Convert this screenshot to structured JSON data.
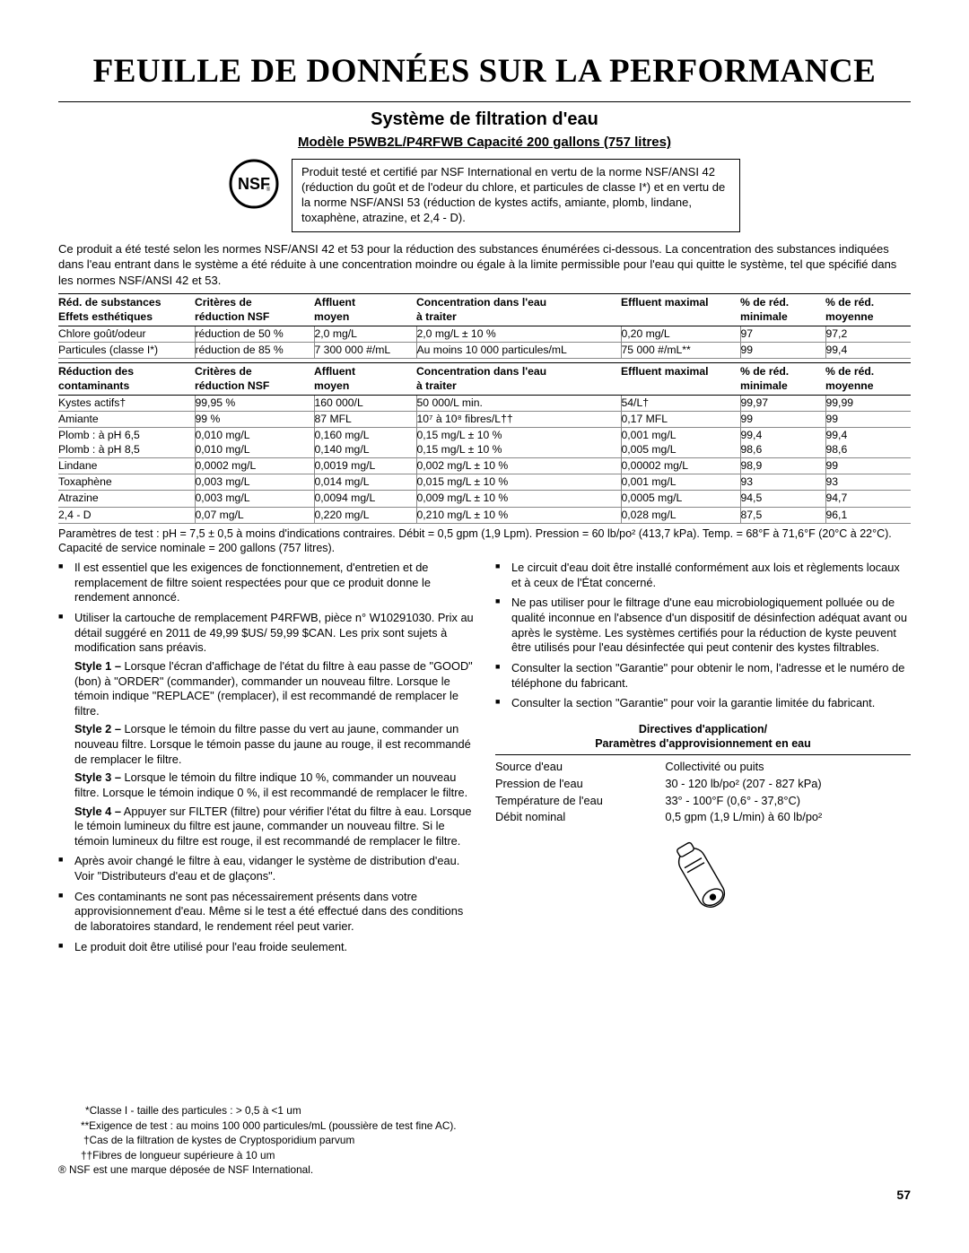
{
  "title": "FEUILLE DE DONNÉES SUR LA PERFORMANCE",
  "subtitle": "Système de filtration d'eau",
  "modelline": "Modèle P5WB2L/P4RFWB Capacité 200 gallons (757 litres)",
  "certbox": "Produit testé et certifié par NSF International en vertu de la norme NSF/ANSI 42 (réduction du goût et de l'odeur du chlore, et particules de classe I*) et en vertu de la norme NSF/ANSI 53 (réduction de kystes actifs, amiante, plomb, lindane, toxaphène, atrazine, et 2,4 - D).",
  "intro": "Ce produit a été testé selon les normes NSF/ANSI 42 et 53 pour la réduction des substances énumérées ci-dessous. La concentration des substances indiquées dans l'eau entrant dans le système a été réduite à une concentration moindre ou égale à la limite permissible pour l'eau qui quitte le système, tel que spécifié dans les normes NSF/ANSI 42 et 53.",
  "table1": {
    "headers": [
      "Réd. de substances\nEffets esthétiques",
      "Critères de\nréduction NSF",
      "Affluent\nmoyen",
      "Concentration dans l'eau\nà traiter",
      "Effluent maximal",
      "% de réd.\nminimale",
      "% de réd.\nmoyenne"
    ],
    "rows": [
      [
        "Chlore goût/odeur",
        "réduction de 50 %",
        "2,0 mg/L",
        "2,0 mg/L ± 10 %",
        "0,20 mg/L",
        "97",
        "97,2"
      ],
      [
        "Particules (classe I*)",
        "réduction de 85 %",
        "7 300 000 #/mL",
        "Au moins 10 000 particules/mL",
        "75 000 #/mL**",
        "99",
        "99,4"
      ]
    ]
  },
  "table2": {
    "headers": [
      "Réduction des\ncontaminants",
      "Critères de\nréduction NSF",
      "Affluent\nmoyen",
      "Concentration dans l'eau\nà traiter",
      "Effluent maximal",
      "% de réd.\nminimale",
      "% de réd.\nmoyenne"
    ],
    "rows": [
      [
        "Kystes actifs†",
        "99,95 %",
        "160 000/L",
        "50 000/L min.",
        "54/L†",
        "99,97",
        "99,99"
      ],
      [
        "Amiante",
        "99 %",
        "87 MFL",
        "10⁷ à 10⁸ fibres/L††",
        "0,17 MFL",
        "99",
        "99"
      ],
      [
        "Plomb : à pH 6,5\nPlomb : à pH 8,5",
        "0,010 mg/L\n0,010 mg/L",
        "0,160 mg/L\n0,140 mg/L",
        "0,15 mg/L ± 10 %\n0,15 mg/L ± 10 %",
        "0,001 mg/L\n0,005 mg/L",
        "99,4\n98,6",
        "99,4\n98,6"
      ],
      [
        "Lindane",
        "0,0002 mg/L",
        "0,0019 mg/L",
        "0,002 mg/L ± 10 %",
        "0,00002 mg/L",
        "98,9",
        "99"
      ],
      [
        "Toxaphène",
        "0,003 mg/L",
        "0,014 mg/L",
        "0,015 mg/L ± 10 %",
        "0,001 mg/L",
        "93",
        "93"
      ],
      [
        "Atrazine",
        "0,003 mg/L",
        "0,0094 mg/L",
        "0,009 mg/L ± 10 %",
        "0,0005 mg/L",
        "94,5",
        "94,7"
      ],
      [
        "2,4 - D",
        "0,07 mg/L",
        "0,220 mg/L",
        "0,210 mg/L ± 10 %",
        "0,028 mg/L",
        "87,5",
        "96,1"
      ]
    ]
  },
  "testparams": "Paramètres de test : pH = 7,5 ± 0,5 à moins d'indications contraires. Débit = 0,5 gpm (1,9 Lpm). Pression = 60 lb/po² (413,7 kPa). Temp. = 68°F à 71,6°F (20°C à 22°C). Capacité de service nominale = 200 gallons (757 litres).",
  "leftbullets": {
    "b1": "Il est essentiel que les exigences de fonctionnement, d'entretien et de remplacement de filtre soient respectées pour que ce produit donne le rendement annoncé.",
    "b2_intro": "Utiliser la cartouche de remplacement P4RFWB, pièce n° W10291030. Prix au détail suggéré en 2011 de 49,99 $US/ 59,99 $CAN. Les prix sont sujets à modification sans préavis.",
    "style1_label": "Style 1 –",
    "style1": " Lorsque l'écran d'affichage de l'état du filtre à eau passe de \"GOOD\" (bon) à \"ORDER\" (commander), commander un nouveau filtre. Lorsque le témoin indique \"REPLACE\" (remplacer), il est recommandé de remplacer le filtre.",
    "style2_label": "Style 2 –",
    "style2": " Lorsque le témoin du filtre passe du vert au jaune, commander un nouveau filtre. Lorsque le témoin passe du jaune au rouge, il est recommandé de remplacer le filtre.",
    "style3_label": "Style 3 –",
    "style3": " Lorsque le témoin du filtre indique 10 %, commander un nouveau filtre. Lorsque le témoin indique 0 %, il est recommandé de remplacer le filtre.",
    "style4_label": "Style 4 –",
    "style4": " Appuyer sur FILTER (filtre) pour vérifier l'état du filtre à eau. Lorsque le témoin lumineux du filtre est jaune, commander un nouveau filtre. Si le témoin lumineux du filtre est rouge, il est recommandé de remplacer le filtre.",
    "b3": "Après avoir changé le filtre à eau, vidanger le système de distribution d'eau. Voir \"Distributeurs d'eau et de glaçons\".",
    "b4": "Ces contaminants ne sont pas nécessairement présents dans votre approvisionnement d'eau. Même si le test a été effectué dans des conditions de laboratoires standard, le rendement réel peut varier.",
    "b5": "Le produit doit être utilisé pour l'eau froide seulement."
  },
  "rightbullets": {
    "r1": "Le circuit d'eau doit être installé conformément aux lois et règlements locaux et à ceux de l'État concerné.",
    "r2": "Ne pas utiliser pour le filtrage d'une eau microbiologiquement polluée ou de qualité inconnue en l'absence d'un dispositif de désinfection adéquat avant ou après le système. Les systèmes certifiés pour la réduction de kyste peuvent être utilisés pour l'eau désinfectée qui peut contenir des kystes filtrables.",
    "r3": "Consulter la section \"Garantie\" pour obtenir le nom, l'adresse et le numéro de téléphone du fabricant.",
    "r4": "Consulter la section \"Garantie\" pour voir la garantie limitée du fabricant."
  },
  "guidelines": {
    "heading": "Directives d'application/\nParamètres d'approvisionnement en eau",
    "rows": [
      [
        "Source d'eau",
        "Collectivité ou puits"
      ],
      [
        "Pression de l'eau",
        "30 - 120 lb/po² (207 - 827 kPa)"
      ],
      [
        "Température de l'eau",
        "33° - 100°F (0,6° - 37,8°C)"
      ],
      [
        "Débit nominal",
        "0,5 gpm (1,9 L/min) à 60 lb/po²"
      ]
    ]
  },
  "footnotes": {
    "f1": "*Classe I - taille des particules :  > 0,5 à <1 um",
    "f2": "**Exigence de test : au moins 100 000 particules/mL (poussière de test fine AC).",
    "f3": "†Cas de la filtration de kystes de Cryptosporidium parvum",
    "f4": "††Fibres de longueur supérieure à 10 um",
    "f5": "® NSF est une marque déposée de NSF International."
  },
  "pagenum": "57"
}
